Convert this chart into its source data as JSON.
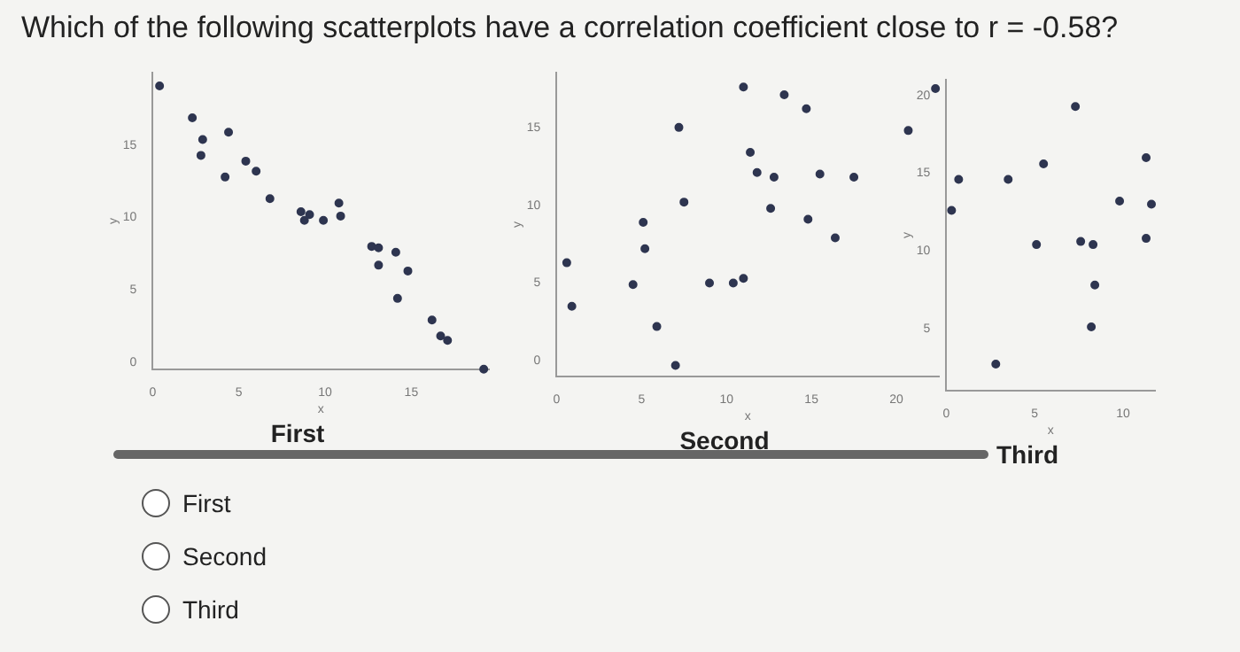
{
  "chart_data": [
    {
      "type": "scatter",
      "title": "First",
      "xlabel": "x",
      "ylabel": "y",
      "xlim": [
        0,
        19.5
      ],
      "ylim": [
        -0.5,
        20
      ],
      "xticks": [
        0,
        5,
        10,
        15
      ],
      "yticks": [
        0,
        5,
        10,
        15
      ],
      "grid": false,
      "marker": "circle",
      "annotations": [
        "Which of the following scatterplots have a correlation coefficient close to r = -0.58?",
        "First",
        "Second",
        "Third"
      ],
      "x": [
        0.4,
        2.3,
        2.9,
        2.8,
        4.4,
        4.2,
        5.4,
        6.0,
        6.8,
        8.6,
        8.8,
        9.1,
        9.9,
        10.8,
        10.9,
        12.7,
        13.1,
        13.1,
        14.1,
        14.8,
        14.2,
        16.2,
        16.7,
        17.1,
        19.2
      ],
      "series": [
        {
          "color": "#2e3550",
          "values": [
            19.1,
            16.9,
            15.4,
            14.3,
            15.9,
            12.8,
            13.9,
            13.2,
            11.3,
            10.4,
            9.8,
            10.2,
            9.8,
            11.0,
            10.1,
            8.0,
            7.9,
            6.7,
            7.6,
            6.3,
            4.4,
            2.9,
            1.8,
            1.5,
            -0.5
          ]
        }
      ]
    },
    {
      "type": "scatter",
      "title": "Second",
      "xlabel": "x",
      "ylabel": "y",
      "xlim": [
        0,
        22.5
      ],
      "ylim": [
        -1,
        18.5
      ],
      "xticks": [
        0,
        5,
        10,
        15,
        20
      ],
      "yticks": [
        0,
        5,
        10,
        15
      ],
      "grid": false,
      "marker": "circle",
      "x": [
        11.0,
        13.4,
        14.7,
        22.3,
        20.7,
        7.2,
        11.4,
        11.8,
        12.8,
        15.5,
        17.5,
        7.5,
        12.6,
        14.8,
        16.4,
        5.1,
        5.2,
        0.6,
        4.5,
        9.0,
        10.4,
        11.0,
        0.9,
        5.9,
        7.0
      ],
      "series": [
        {
          "color": "#2e3550",
          "values": [
            17.6,
            17.1,
            16.2,
            17.5,
            14.8,
            15.0,
            13.4,
            12.1,
            11.8,
            12.0,
            11.8,
            10.2,
            9.8,
            9.1,
            7.9,
            8.9,
            7.2,
            6.3,
            4.9,
            5.0,
            5.0,
            5.3,
            3.5,
            2.2,
            -0.3
          ]
        }
      ]
    },
    {
      "type": "scatter",
      "title": "Third",
      "xlabel": "x",
      "ylabel": "y",
      "xlim": [
        0,
        11.8
      ],
      "ylim": [
        1,
        21
      ],
      "xticks": [
        0,
        5,
        10
      ],
      "yticks": [
        5,
        10,
        15,
        20
      ],
      "grid": false,
      "marker": "circle",
      "x": [
        7.3,
        11.3,
        5.5,
        0.7,
        3.5,
        0.3,
        9.8,
        11.6,
        5.1,
        7.6,
        8.3,
        11.3,
        8.4,
        8.2,
        2.8
      ],
      "series": [
        {
          "color": "#2e3550",
          "values": [
            19.3,
            16.0,
            15.6,
            14.6,
            14.6,
            12.6,
            13.2,
            13.0,
            10.4,
            10.6,
            10.4,
            10.8,
            7.8,
            5.1,
            2.7
          ]
        }
      ]
    }
  ]
}
